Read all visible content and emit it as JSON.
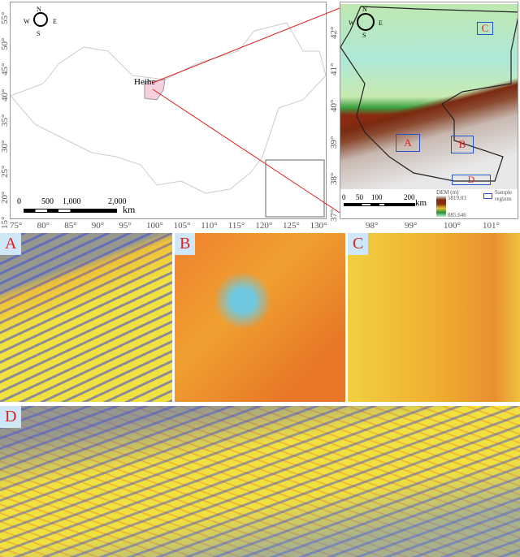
{
  "overview_map": {
    "region_label": "Heihe",
    "compass": {
      "n": "N",
      "s": "S",
      "e": "E",
      "w": "W"
    },
    "scale": {
      "ticks": [
        "0",
        "500",
        "1,000",
        "2,000"
      ],
      "unit": "km"
    },
    "lon_ticks": [
      "75°",
      "80°",
      "85°",
      "90°",
      "95°",
      "100°",
      "105°",
      "110°",
      "115°",
      "120°",
      "125°",
      "130°"
    ],
    "lat_ticks": [
      "55°",
      "50°",
      "45°",
      "40°",
      "35°",
      "30°",
      "25°",
      "20°",
      "15°"
    ],
    "highlight_color": "#f7d0e0",
    "leader_color": "#e02020"
  },
  "dem_map": {
    "compass": {
      "n": "N",
      "s": "S",
      "e": "E",
      "w": "W"
    },
    "lat_ticks": [
      "42°",
      "41°",
      "40°",
      "39°",
      "38°",
      "37°"
    ],
    "lon_ticks": [
      "98°",
      "99°",
      "100°",
      "101°"
    ],
    "scale": {
      "ticks": [
        "0",
        "50",
        "100",
        "200"
      ],
      "unit": "km"
    },
    "legend": {
      "title": "DEM (m)",
      "max": "5819.03",
      "min": "885.646",
      "sample_label": "Sample regions"
    },
    "sample_boxes": [
      "A",
      "B",
      "C",
      "D"
    ],
    "box_color": "#2255cc"
  },
  "panels": [
    {
      "label": "A"
    },
    {
      "label": "B"
    },
    {
      "label": "C"
    },
    {
      "label": "D"
    }
  ]
}
